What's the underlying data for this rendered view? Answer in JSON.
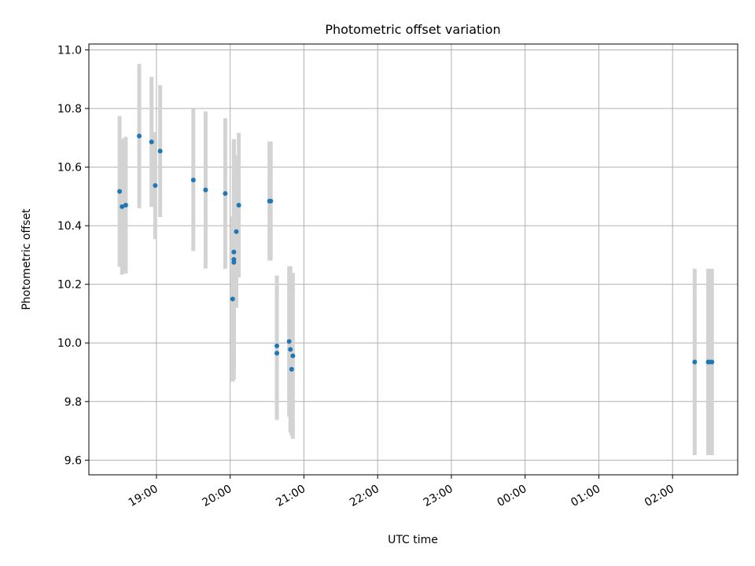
{
  "chart_data": {
    "type": "scatter",
    "title": "Photometric offset variation",
    "xlabel": "UTC time",
    "ylabel": "Photometric offset",
    "ylim": [
      9.55,
      11.02
    ],
    "xlim": [
      "18:05",
      "02:53"
    ],
    "grid": true,
    "x_ticks": [
      "19:00",
      "20:00",
      "21:00",
      "22:00",
      "23:00",
      "00:00",
      "01:00",
      "02:00"
    ],
    "y_ticks": [
      "9.6",
      "9.8",
      "10.0",
      "10.2",
      "10.4",
      "10.6",
      "10.8",
      "11.0"
    ],
    "series": [
      {
        "points": [
          {
            "t": "18:30",
            "y": 10.517,
            "err": 0.257
          },
          {
            "t": "18:32",
            "y": 10.465,
            "err": 0.232
          },
          {
            "t": "18:35",
            "y": 10.47,
            "err": 0.233
          },
          {
            "t": "18:46",
            "y": 10.706,
            "err": 0.246
          },
          {
            "t": "18:56",
            "y": 10.686,
            "err": 0.222
          },
          {
            "t": "18:59",
            "y": 10.537,
            "err": 0.183
          },
          {
            "t": "19:03",
            "y": 10.655,
            "err": 0.225
          },
          {
            "t": "19:30",
            "y": 10.556,
            "err": 0.242
          },
          {
            "t": "19:40",
            "y": 10.522,
            "err": 0.268
          },
          {
            "t": "19:56",
            "y": 10.51,
            "err": 0.257
          },
          {
            "t": "20:02",
            "y": 10.15,
            "err": 0.282
          },
          {
            "t": "20:03",
            "y": 10.275,
            "err": 0.372
          },
          {
            "t": "20:03",
            "y": 10.285,
            "err": 0.41
          },
          {
            "t": "20:03",
            "y": 10.31,
            "err": 0.385
          },
          {
            "t": "20:05",
            "y": 10.38,
            "err": 0.26
          },
          {
            "t": "20:07",
            "y": 10.47,
            "err": 0.247
          },
          {
            "t": "20:32",
            "y": 10.484,
            "err": 0.203
          },
          {
            "t": "20:33",
            "y": 10.484,
            "err": 0.203
          },
          {
            "t": "20:38",
            "y": 9.99,
            "err": 0.24
          },
          {
            "t": "20:38",
            "y": 9.965,
            "err": 0.228
          },
          {
            "t": "20:48",
            "y": 10.005,
            "err": 0.257
          },
          {
            "t": "20:49",
            "y": 9.978,
            "err": 0.283
          },
          {
            "t": "20:50",
            "y": 9.91,
            "err": 0.227
          },
          {
            "t": "20:51",
            "y": 9.956,
            "err": 0.283
          },
          {
            "t": "02:18",
            "y": 9.935,
            "err": 0.318
          },
          {
            "t": "02:29",
            "y": 9.935,
            "err": 0.318
          },
          {
            "t": "02:30",
            "y": 9.935,
            "err": 0.318
          },
          {
            "t": "02:32",
            "y": 9.935,
            "err": 0.318
          }
        ],
        "marker_color": "#1f77b4",
        "errorbar_color": "#d3d3d3"
      }
    ]
  }
}
